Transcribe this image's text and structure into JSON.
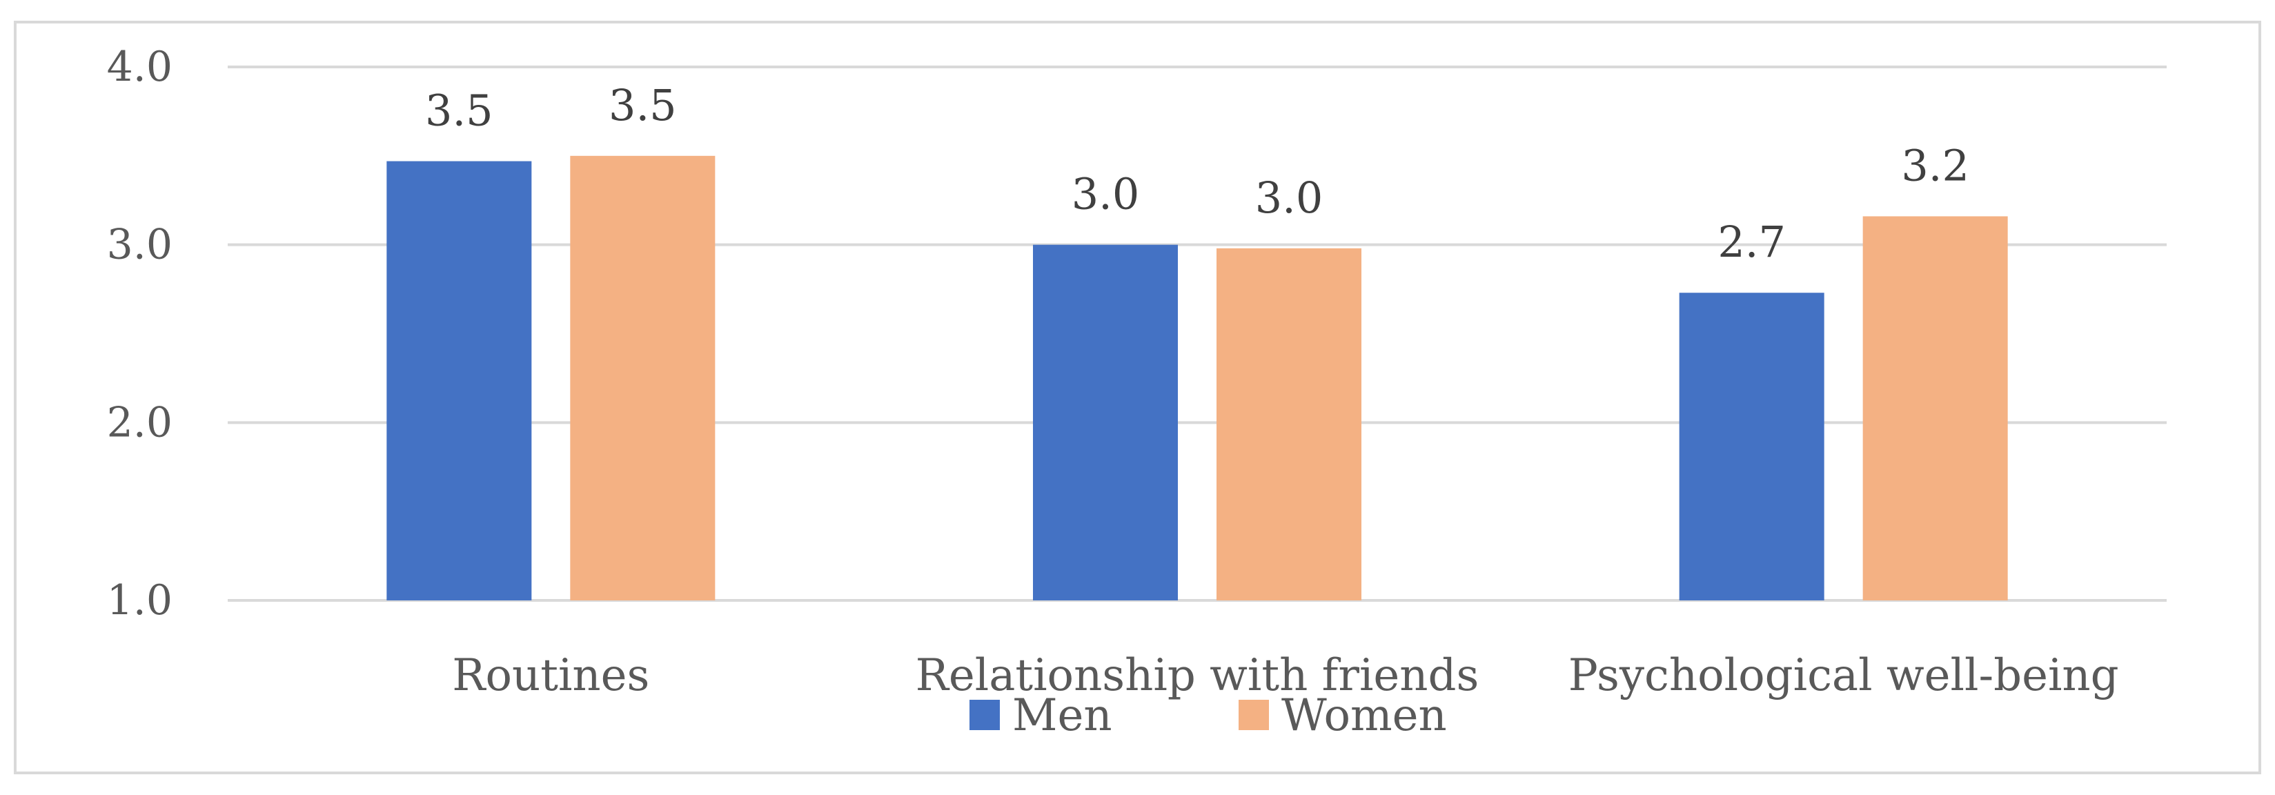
{
  "chart_data": {
    "type": "bar",
    "categories": [
      "Routines",
      "Relationship with friends",
      "Psychological well-being"
    ],
    "series": [
      {
        "name": "Men",
        "values": [
          3.47,
          3.0,
          2.73
        ],
        "labels": [
          "3.5",
          "3.0",
          "2.7"
        ],
        "color": "#4472c4"
      },
      {
        "name": "Women",
        "values": [
          3.5,
          2.98,
          3.16
        ],
        "labels": [
          "3.5",
          "3.0",
          "3.2"
        ],
        "color": "#f4b183"
      }
    ],
    "ylim": [
      1.0,
      4.0
    ],
    "yticks": [
      1.0,
      2.0,
      3.0,
      4.0
    ],
    "ytick_labels": [
      "1.0",
      "2.0",
      "3.0",
      "4.0"
    ],
    "grid": true,
    "gridline_color": "#d9d9d9",
    "legend_position": "bottom",
    "title": "",
    "xlabel": "",
    "ylabel": ""
  }
}
